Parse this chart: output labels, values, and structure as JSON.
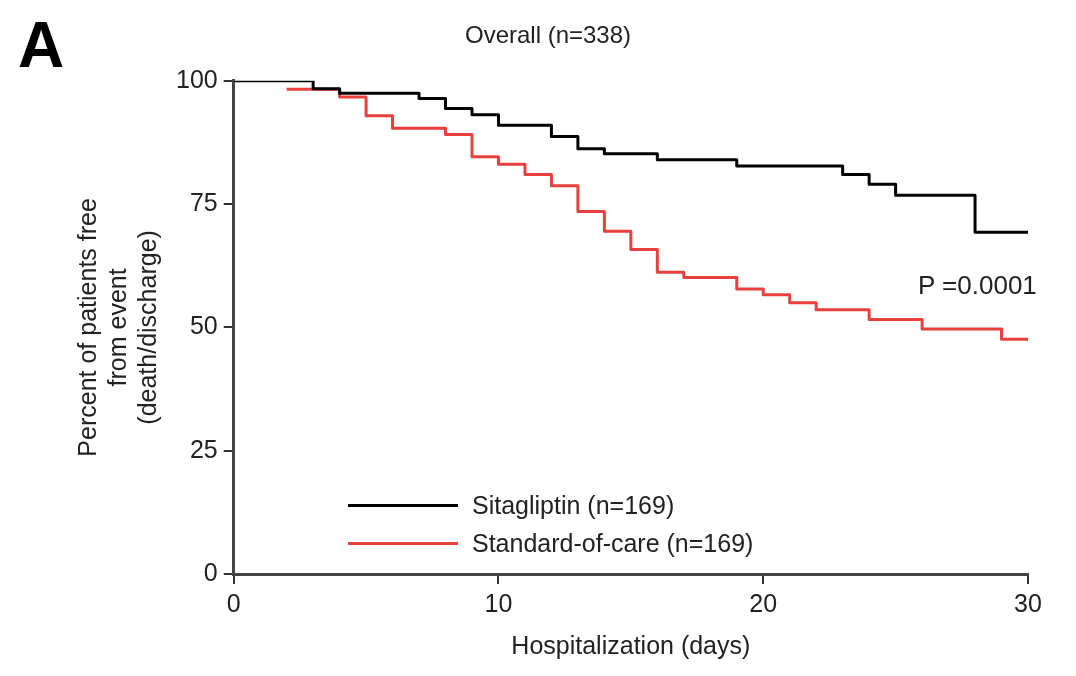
{
  "chart_data": {
    "type": "step",
    "title": "Overall (n=338)",
    "xlabel": "Hospitalization (days)",
    "ylabel": "Percent of patients free\nfrom event\n(death/discharge)",
    "annotations": [
      "A",
      "P =0.0001"
    ],
    "xlim": [
      0,
      30
    ],
    "xticks": [
      0,
      10,
      20,
      30
    ],
    "ylim": [
      0,
      100
    ],
    "yticks": [
      0,
      25,
      50,
      75,
      100
    ],
    "grid": false,
    "legend": "bottom left",
    "marker": "none",
    "line_style": "solid",
    "series": [
      {
        "name": "Sitagliptin (n=169)",
        "color": "#000000",
        "x": [
          0,
          3,
          4,
          7,
          8,
          9,
          10,
          12,
          13,
          14,
          16,
          19,
          23,
          24,
          25,
          28,
          30
        ],
        "values": [
          100,
          98.4,
          97.5,
          96.4,
          94.4,
          93.1,
          91,
          88.7,
          86.2,
          85.2,
          84,
          82.7,
          81,
          79,
          76.8,
          69.3,
          69.3
        ]
      },
      {
        "name": "Standard-of-care (n=169)",
        "color": "#e8403c",
        "x": [
          2,
          4,
          5,
          6,
          8,
          9,
          10,
          11,
          12,
          13,
          14,
          15,
          16,
          17,
          19,
          20,
          21,
          22,
          24,
          26,
          29,
          30
        ],
        "values": [
          98.3,
          96.7,
          92.9,
          90.4,
          89.1,
          84.6,
          83.1,
          81,
          78.7,
          73.5,
          69.5,
          65.8,
          61.2,
          60.1,
          57.8,
          56.6,
          55,
          53.6,
          51.6,
          49.7,
          47.6,
          47.6
        ]
      }
    ]
  }
}
